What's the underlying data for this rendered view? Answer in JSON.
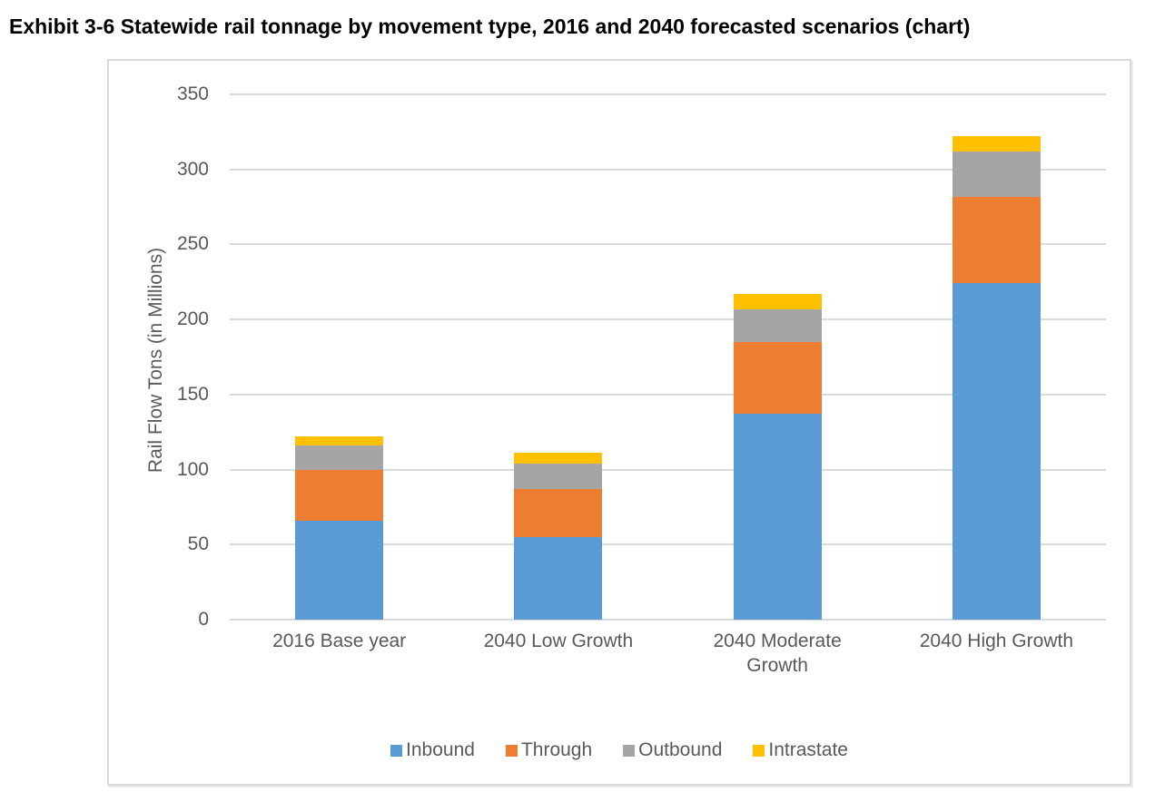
{
  "title": "Exhibit 3-6 Statewide rail tonnage by movement type, 2016 and 2040 forecasted scenarios (chart)",
  "chart_data": {
    "type": "bar",
    "stacked": true,
    "categories": [
      "2016 Base year",
      "2040 Low Growth",
      "2040 Moderate Growth",
      "2040 High Growth"
    ],
    "series": [
      {
        "name": "Inbound",
        "color": "#5B9BD5",
        "values": [
          66,
          55,
          137,
          224
        ]
      },
      {
        "name": "Through",
        "color": "#ED7D31",
        "values": [
          34,
          32,
          48,
          58
        ]
      },
      {
        "name": "Outbound",
        "color": "#A5A5A5",
        "values": [
          16,
          17,
          22,
          30
        ]
      },
      {
        "name": "Intrastate",
        "color": "#FFC000",
        "values": [
          6,
          7,
          10,
          10
        ]
      }
    ],
    "totals": [
      122,
      111,
      217,
      322
    ],
    "ylabel": "Rail Flow Tons (in Millions)",
    "xlabel": "",
    "ylim": [
      0,
      350
    ],
    "yticks": [
      0,
      50,
      100,
      150,
      200,
      250,
      300,
      350
    ],
    "grid": true,
    "legend_position": "bottom",
    "axis_text_color": "#595959",
    "gridline_color": "#DBDBDB"
  }
}
